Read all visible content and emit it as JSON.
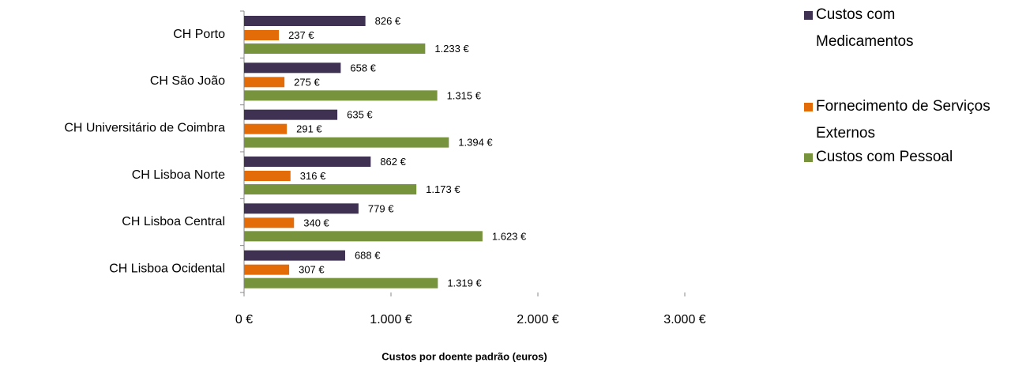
{
  "chart_data": {
    "type": "hbar",
    "xlabel": "Custos por doente padrão (euros)",
    "categories": [
      "CH Porto",
      "CH São João",
      "CH Universitário de Coimbra",
      "CH Lisboa Norte",
      "CH Lisboa Central",
      "CH Lisboa Ocidental"
    ],
    "series": [
      {
        "name": "Custos com Medicamentos",
        "color": "#3f3151",
        "values": [
          826,
          658,
          635,
          862,
          779,
          688
        ],
        "value_labels": [
          "826 €",
          "658 €",
          "635 €",
          "862 €",
          "779 €",
          "688 €"
        ]
      },
      {
        "name": "Fornecimento de Serviços Externos",
        "color": "#e36c09",
        "values": [
          237,
          275,
          291,
          316,
          340,
          307
        ],
        "value_labels": [
          "237 €",
          "275 €",
          "291 €",
          "316 €",
          "340 €",
          "307 €"
        ]
      },
      {
        "name": "Custos com Pessoal",
        "color": "#77933c",
        "values": [
          1233,
          1315,
          1394,
          1173,
          1623,
          1319
        ],
        "value_labels": [
          "1.233 €",
          "1.315 €",
          "1.394 €",
          "1.173 €",
          "1.623 €",
          "1.319 €"
        ]
      }
    ],
    "xlim": [
      0,
      3000
    ],
    "xticks": [
      {
        "value": 0,
        "label": "0 €"
      },
      {
        "value": 1000,
        "label": "1.000 €"
      },
      {
        "value": 2000,
        "label": "2.000 €"
      },
      {
        "value": 3000,
        "label": "3.000 €"
      }
    ],
    "legend": "right"
  }
}
